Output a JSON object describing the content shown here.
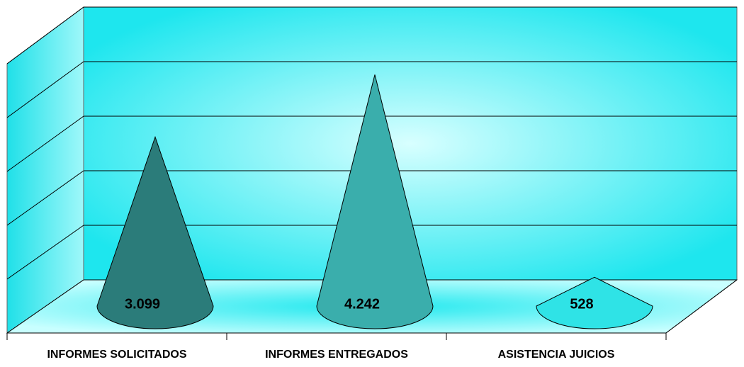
{
  "chart_data": {
    "type": "cone",
    "categories": [
      "INFORMES SOLICITADOS",
      "INFORMES ENTREGADOS",
      "ASISTENCIA JUICIOS"
    ],
    "values": [
      3099,
      4242,
      528
    ],
    "value_labels": [
      "3.099",
      "4.242",
      "528"
    ],
    "colors": [
      "#2b7c7a",
      "#3aaeac",
      "#2fe3e6"
    ],
    "ylim": [
      0,
      5000
    ],
    "yticks": [
      0,
      1000,
      2000,
      3000,
      4000,
      5000
    ],
    "grid": true
  }
}
